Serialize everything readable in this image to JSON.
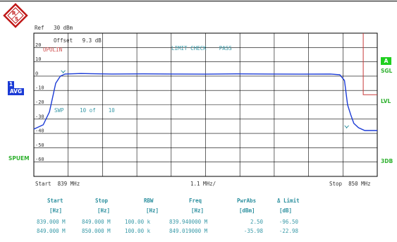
{
  "header": {
    "ref_label": "Ref",
    "ref_value": "30 dBm",
    "offset_label": "Offset",
    "offset_value": "9.3 dB"
  },
  "overlay": {
    "limit_line_name": "UPOLIN",
    "limit_check": "LIMIT CHECK",
    "limit_result": "PASS",
    "sweep_label": "SWP",
    "sweep_current": "10",
    "sweep_of": "of",
    "sweep_total": "10"
  },
  "left_panel": {
    "trace_number": "1",
    "detector": "AVG",
    "mode": "SPUEM"
  },
  "right_panel": {
    "trace_badge": "A",
    "sgl": "SGL",
    "lvl": "LVL",
    "db3": "3DB"
  },
  "axis": {
    "start_label": "Start",
    "start_value": "839 MHz",
    "div_value": "1.1 MHz/",
    "stop_label": "Stop",
    "stop_value": "850 MHz",
    "y_ticks": [
      "20",
      "10",
      "0",
      "-10",
      "-20",
      "-30",
      "-40",
      "-50",
      "-60"
    ]
  },
  "table": {
    "headers": [
      "Start",
      "Stop",
      "RBW",
      "Freq",
      "PwrAbs",
      "Δ Limit"
    ],
    "units": [
      "[Hz]",
      "[Hz]",
      "[Hz]",
      "[Hz]",
      "[dBm]",
      "[dB]"
    ],
    "rows": [
      [
        "839.000 M",
        "849.000 M",
        "100.00 k",
        "839.940000 M",
        "2.50",
        "-96.50"
      ],
      [
        "849.000 M",
        "850.000 M",
        "100.00 k",
        "849.019000 M",
        "-35.98",
        "-22.98"
      ]
    ]
  },
  "chart_data": {
    "type": "line",
    "title": "",
    "xlabel": "",
    "ylabel": "",
    "xlim": [
      839,
      850
    ],
    "ylim": [
      -70,
      30
    ],
    "x_unit": "MHz",
    "y_unit": "dBm",
    "series": [
      {
        "color": "#1b3bd6",
        "x": [
          839.0,
          839.3,
          839.5,
          839.7,
          839.85,
          840.0,
          840.5,
          841.5,
          842.5,
          843.5,
          844.5,
          845.5,
          846.5,
          847.5,
          848.5,
          848.8,
          848.95,
          849.05,
          849.15,
          849.25,
          849.4,
          849.6,
          850.0
        ],
        "y": [
          -37,
          -34,
          -25,
          -5,
          0,
          1.5,
          1.8,
          1.5,
          1.6,
          1.5,
          1.4,
          1.6,
          1.5,
          1.4,
          1.5,
          1.0,
          -3,
          -20,
          -27,
          -33,
          -36,
          -38,
          -38
        ]
      },
      {
        "color": "#c83a3a",
        "x": [
          849.55,
          849.55,
          850.0
        ],
        "y": [
          30,
          -13,
          -13
        ]
      }
    ],
    "markers": [
      {
        "x": 839.94,
        "y": 2.5
      },
      {
        "x": 849.02,
        "y": -35.98
      }
    ],
    "grid": true
  }
}
